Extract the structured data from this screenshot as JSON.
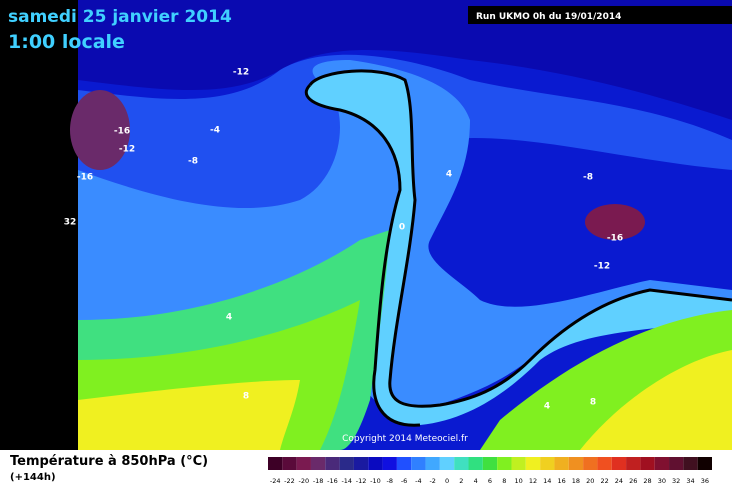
{
  "header": {
    "date": "samedi 25 janvier 2014",
    "time": "1:00 locale",
    "run": "Run UKMO 0h du 19/01/2014"
  },
  "map": {
    "copyright": "Copyright 2014 Meteociel.fr",
    "labels": [
      "-12",
      "-16",
      "-12",
      "-4",
      "-8",
      "-16",
      "32",
      "0",
      "4",
      "-8",
      "-16",
      "-12",
      "4",
      "8",
      "4",
      "8"
    ]
  },
  "legend": {
    "title": "Température à 850hPa (°C)",
    "lead": "(+144h)",
    "scale": [
      -24,
      -22,
      -20,
      -18,
      -16,
      -14,
      -12,
      -10,
      -8,
      -6,
      -4,
      -2,
      0,
      2,
      4,
      6,
      8,
      10,
      12,
      14,
      16,
      18,
      20,
      22,
      24,
      26,
      28,
      30,
      32,
      34,
      36
    ],
    "colors": [
      "#3d0026",
      "#5a0a3a",
      "#7a1a50",
      "#6a2a6a",
      "#4a2a7a",
      "#2a2a8a",
      "#1a1aa0",
      "#0a0ac0",
      "#1010e0",
      "#2050ff",
      "#3080ff",
      "#40a8ff",
      "#60d0ff",
      "#40e0c0",
      "#30e080",
      "#40e040",
      "#80f020",
      "#c0f020",
      "#f0f020",
      "#f0d020",
      "#f0b020",
      "#f09020",
      "#f07020",
      "#f05020",
      "#e03020",
      "#c02020",
      "#a01020",
      "#801030",
      "#601030",
      "#401020",
      "#100000"
    ]
  }
}
